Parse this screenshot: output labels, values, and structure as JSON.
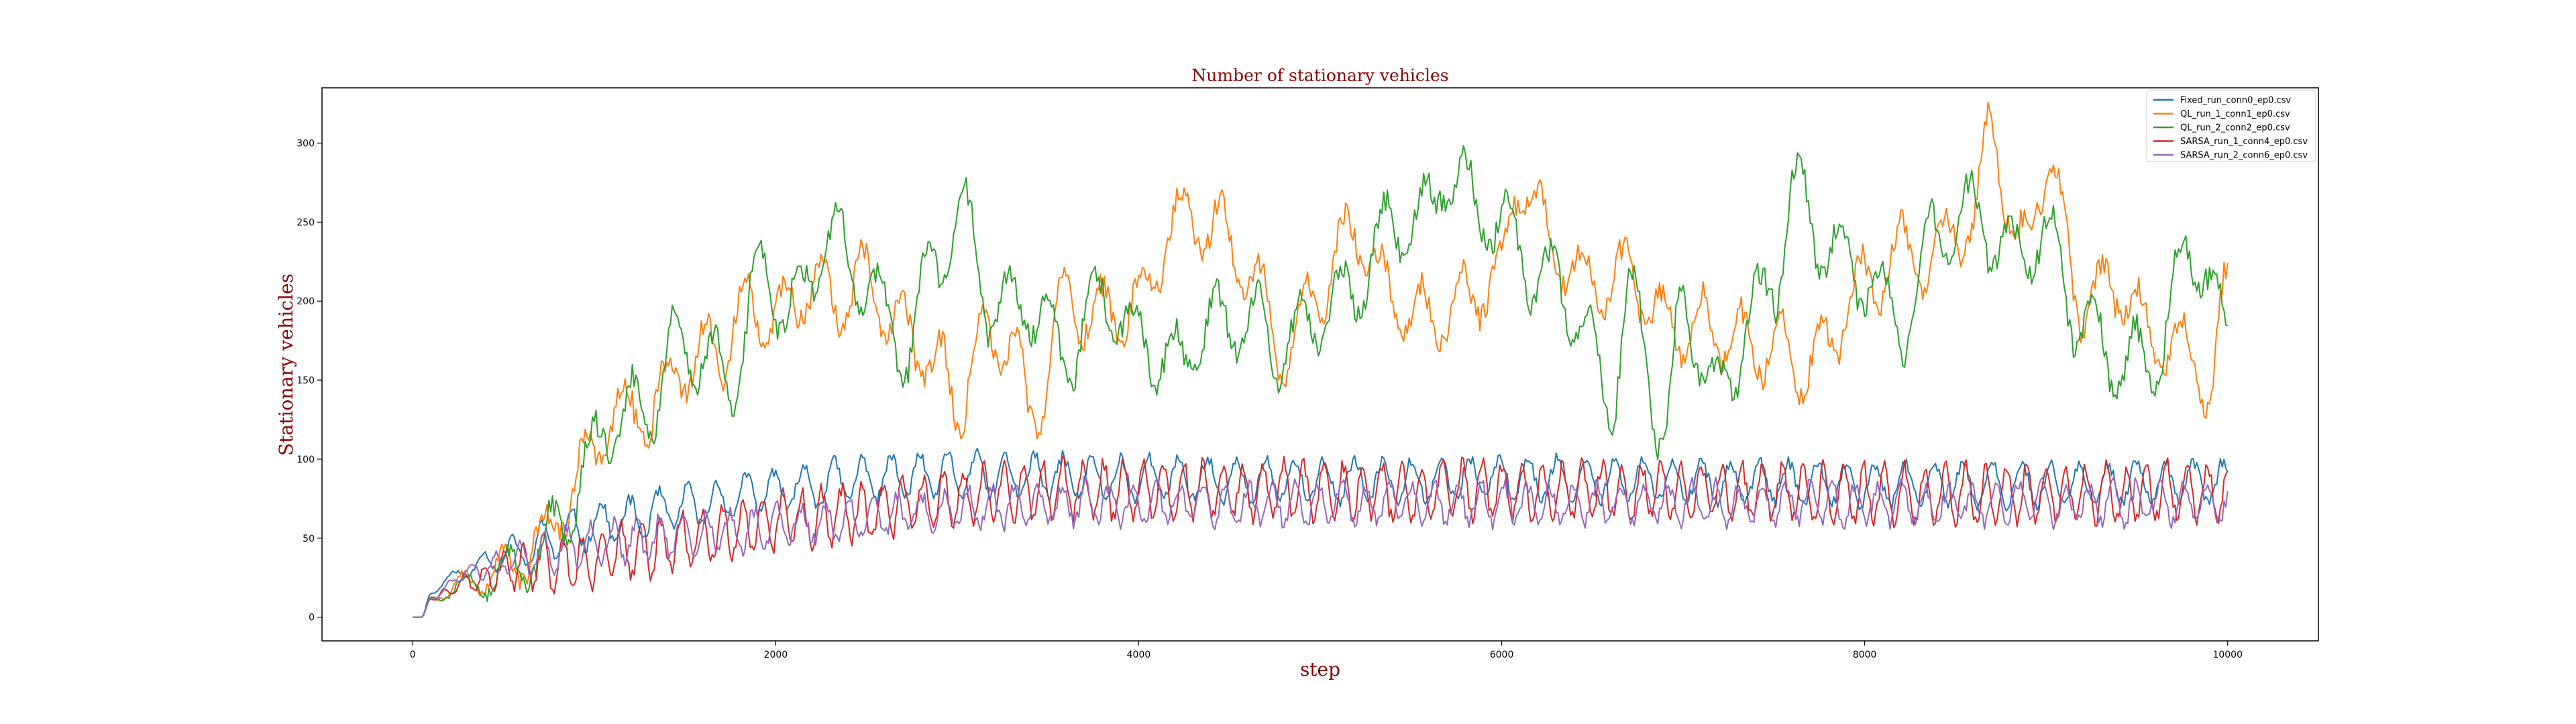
{
  "chart_data": {
    "type": "line",
    "title": "Number of stationary vehicles",
    "xlabel": "step",
    "ylabel": "Stationary vehicles",
    "xlim": [
      -500,
      10500
    ],
    "ylim": [
      -15,
      335
    ],
    "xticks": [
      0,
      2000,
      4000,
      6000,
      8000,
      10000
    ],
    "yticks": [
      0,
      50,
      100,
      150,
      200,
      250,
      300
    ],
    "grid": false,
    "legend_position": "top-right",
    "series": [
      {
        "name": "Fixed_run_conn0_ep0.csv",
        "color": "#1f77b4",
        "anchors": [
          [
            0,
            0
          ],
          [
            50,
            0
          ],
          [
            100,
            15
          ],
          [
            200,
            25
          ],
          [
            400,
            35
          ],
          [
            600,
            42
          ],
          [
            800,
            50
          ],
          [
            1000,
            58
          ],
          [
            1200,
            62
          ],
          [
            1500,
            70
          ],
          [
            2000,
            80
          ],
          [
            2500,
            88
          ],
          [
            3000,
            90
          ],
          [
            4000,
            88
          ],
          [
            5000,
            86
          ],
          [
            6000,
            88
          ],
          [
            7000,
            86
          ],
          [
            8000,
            84
          ],
          [
            9000,
            84
          ],
          [
            10000,
            86
          ]
        ],
        "osc_amp": 13,
        "osc_period": 160,
        "noise": 4,
        "seed": 11
      },
      {
        "name": "QL_run_1_conn1_ep0.csv",
        "color": "#ff7f0e",
        "anchors": [
          [
            0,
            0
          ],
          [
            50,
            0
          ],
          [
            100,
            12
          ],
          [
            300,
            22
          ],
          [
            500,
            30
          ],
          [
            700,
            45
          ],
          [
            850,
            75
          ],
          [
            1000,
            110
          ],
          [
            1100,
            130
          ],
          [
            1300,
            130
          ],
          [
            1500,
            160
          ],
          [
            1700,
            170
          ],
          [
            1850,
            200
          ],
          [
            2000,
            190
          ],
          [
            2200,
            210
          ],
          [
            2350,
            200
          ],
          [
            2500,
            215
          ],
          [
            2700,
            180
          ],
          [
            2900,
            160
          ],
          [
            3000,
            130
          ],
          [
            3100,
            170
          ],
          [
            3300,
            175
          ],
          [
            3400,
            125
          ],
          [
            3600,
            200
          ],
          [
            3800,
            190
          ],
          [
            4000,
            200
          ],
          [
            4200,
            250
          ],
          [
            4400,
            250
          ],
          [
            4600,
            220
          ],
          [
            4800,
            165
          ],
          [
            5000,
            210
          ],
          [
            5200,
            245
          ],
          [
            5400,
            200
          ],
          [
            5600,
            190
          ],
          [
            5800,
            200
          ],
          [
            6000,
            220
          ],
          [
            6100,
            280
          ],
          [
            6300,
            230
          ],
          [
            6500,
            210
          ],
          [
            6700,
            215
          ],
          [
            6900,
            185
          ],
          [
            7100,
            185
          ],
          [
            7300,
            175
          ],
          [
            7500,
            170
          ],
          [
            7700,
            160
          ],
          [
            8000,
            210
          ],
          [
            8200,
            230
          ],
          [
            8300,
            225
          ],
          [
            8600,
            250
          ],
          [
            8700,
            315
          ],
          [
            8850,
            230
          ],
          [
            9000,
            285
          ],
          [
            9200,
            200
          ],
          [
            9400,
            210
          ],
          [
            9600,
            175
          ],
          [
            9800,
            170
          ],
          [
            9900,
            140
          ],
          [
            10000,
            205
          ]
        ],
        "osc_amp": 20,
        "osc_period": 220,
        "noise": 8,
        "seed": 22
      },
      {
        "name": "QL_run_2_conn2_ep0.csv",
        "color": "#2ca02c",
        "anchors": [
          [
            0,
            0
          ],
          [
            50,
            0
          ],
          [
            100,
            12
          ],
          [
            300,
            20
          ],
          [
            500,
            28
          ],
          [
            700,
            40
          ],
          [
            850,
            65
          ],
          [
            950,
            95
          ],
          [
            1100,
            125
          ],
          [
            1300,
            135
          ],
          [
            1450,
            175
          ],
          [
            1600,
            165
          ],
          [
            1750,
            145
          ],
          [
            1900,
            215
          ],
          [
            2100,
            195
          ],
          [
            2300,
            240
          ],
          [
            2500,
            210
          ],
          [
            2700,
            170
          ],
          [
            2900,
            225
          ],
          [
            3000,
            260
          ],
          [
            3200,
            195
          ],
          [
            3400,
            200
          ],
          [
            3600,
            165
          ],
          [
            3800,
            205
          ],
          [
            4000,
            175
          ],
          [
            4200,
            160
          ],
          [
            4400,
            185
          ],
          [
            4600,
            190
          ],
          [
            4800,
            170
          ],
          [
            5000,
            190
          ],
          [
            5200,
            210
          ],
          [
            5400,
            250
          ],
          [
            5600,
            255
          ],
          [
            5700,
            285
          ],
          [
            5900,
            255
          ],
          [
            6000,
            250
          ],
          [
            6200,
            215
          ],
          [
            6400,
            200
          ],
          [
            6600,
            140
          ],
          [
            6700,
            200
          ],
          [
            6900,
            120
          ],
          [
            7000,
            195
          ],
          [
            7200,
            140
          ],
          [
            7400,
            195
          ],
          [
            7500,
            210
          ],
          [
            7600,
            270
          ],
          [
            7800,
            235
          ],
          [
            8000,
            215
          ],
          [
            8200,
            185
          ],
          [
            8400,
            245
          ],
          [
            8600,
            255
          ],
          [
            8800,
            230
          ],
          [
            9000,
            240
          ],
          [
            9200,
            185
          ],
          [
            9400,
            160
          ],
          [
            9600,
            165
          ],
          [
            9800,
            235
          ],
          [
            10000,
            182
          ]
        ],
        "osc_amp": 22,
        "osc_period": 230,
        "noise": 8,
        "seed": 33
      },
      {
        "name": "SARSA_run_1_conn4_ep0.csv",
        "color": "#d62728",
        "anchors": [
          [
            0,
            0
          ],
          [
            50,
            0
          ],
          [
            100,
            12
          ],
          [
            300,
            22
          ],
          [
            600,
            32
          ],
          [
            900,
            35
          ],
          [
            1200,
            42
          ],
          [
            1500,
            48
          ],
          [
            1800,
            55
          ],
          [
            2000,
            60
          ],
          [
            2400,
            65
          ],
          [
            2800,
            72
          ],
          [
            3200,
            78
          ],
          [
            3600,
            80
          ],
          [
            4000,
            80
          ],
          [
            5000,
            80
          ],
          [
            6000,
            80
          ],
          [
            7000,
            80
          ],
          [
            8000,
            78
          ],
          [
            9000,
            78
          ],
          [
            10000,
            80
          ]
        ],
        "osc_amp": 17,
        "osc_period": 110,
        "noise": 5,
        "seed": 44
      },
      {
        "name": "SARSA_run_2_conn6_ep0.csv",
        "color": "#9467bd",
        "anchors": [
          [
            0,
            0
          ],
          [
            50,
            0
          ],
          [
            100,
            12
          ],
          [
            300,
            28
          ],
          [
            600,
            38
          ],
          [
            900,
            45
          ],
          [
            1200,
            48
          ],
          [
            1500,
            52
          ],
          [
            1800,
            55
          ],
          [
            2000,
            58
          ],
          [
            2400,
            62
          ],
          [
            2800,
            66
          ],
          [
            3200,
            70
          ],
          [
            3600,
            72
          ],
          [
            4000,
            72
          ],
          [
            5000,
            72
          ],
          [
            6000,
            72
          ],
          [
            7000,
            72
          ],
          [
            8000,
            72
          ],
          [
            9000,
            72
          ],
          [
            10000,
            72
          ]
        ],
        "osc_amp": 12,
        "osc_period": 130,
        "noise": 5,
        "seed": 55
      }
    ]
  }
}
